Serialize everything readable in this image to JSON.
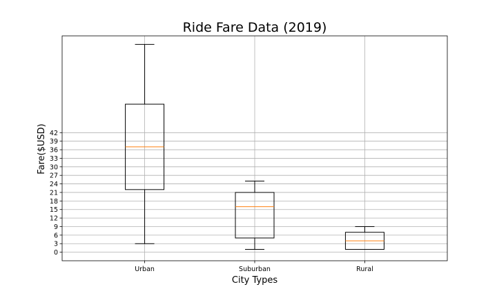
{
  "chart_data": {
    "type": "box",
    "title": "Ride Fare Data (2019)",
    "xlabel": "City Types",
    "ylabel": "Fare($USD)",
    "categories": [
      "Urban",
      "Suburban",
      "Rural"
    ],
    "boxes": [
      {
        "name": "Urban",
        "whisker_low": 3.0,
        "q1": 22.0,
        "median": 37.0,
        "q3": 52.0,
        "whisker_high": 73.0
      },
      {
        "name": "Suburban",
        "whisker_low": 1.0,
        "q1": 5.0,
        "median": 16.0,
        "q3": 21.0,
        "whisker_high": 25.0
      },
      {
        "name": "Rural",
        "whisker_low": 1.0,
        "q1": 1.0,
        "median": 4.0,
        "q3": 7.0,
        "whisker_high": 9.0
      }
    ],
    "yticks": [
      0,
      3,
      6,
      9,
      12,
      15,
      18,
      21,
      24,
      27,
      30,
      33,
      36,
      39,
      42
    ],
    "ylim": [
      -3,
      76
    ],
    "grid": true,
    "median_color": "#ff7f0e",
    "grid_color": "#b0b0b0"
  }
}
